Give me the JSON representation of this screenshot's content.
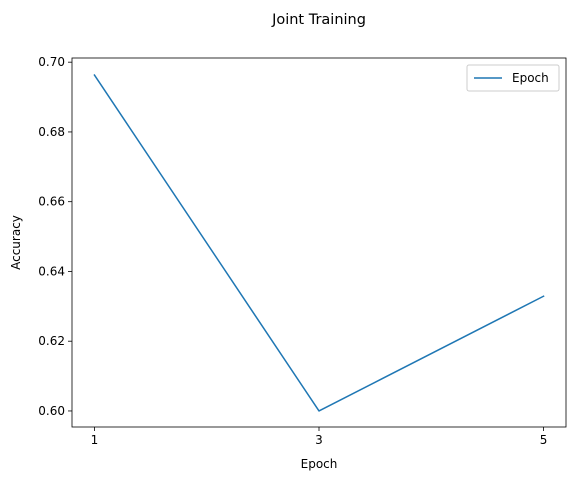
{
  "chart_data": {
    "type": "line",
    "title": "Joint Training",
    "xlabel": "Epoch",
    "ylabel": "Accuracy",
    "x": [
      1,
      3,
      5
    ],
    "xticks": [
      "1",
      "3",
      "5"
    ],
    "yticks": [
      "0.60",
      "0.62",
      "0.64",
      "0.66",
      "0.68",
      "0.70"
    ],
    "xlim": [
      0.8,
      5.2
    ],
    "ylim": [
      0.5954,
      0.7012
    ],
    "grid": false,
    "legend_position": "top-right",
    "series": [
      {
        "name": "Epoch",
        "values": [
          0.6963,
          0.6,
          0.6329
        ],
        "color": "#1f77b4"
      }
    ]
  }
}
